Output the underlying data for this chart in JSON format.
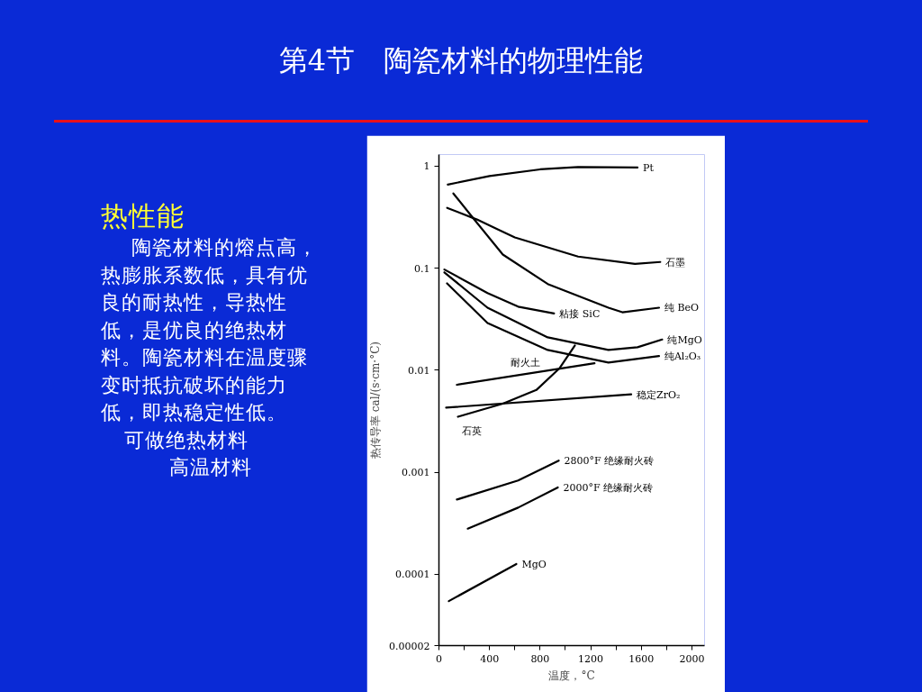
{
  "chart_data": {
    "type": "line",
    "title": "第4节　陶瓷材料的物理性能",
    "subtitle": "热性能",
    "annotations": [
      "陶瓷材料的熔点高，热膨胀系数低，具有优良的耐热性，导热性低，是优良的绝热材料。陶瓷材料在温度骤变时抵抗破坏的能力低，即热稳定性低。",
      "可做绝热材料",
      "高温材料"
    ],
    "xlabel": "温度，°C",
    "ylabel": "热传导率 cal/(s·cm·°C)",
    "log": "y",
    "grid": false,
    "marker": "none",
    "line_style": "solid",
    "xlim": [
      0,
      2100
    ],
    "ylim": [
      2e-05,
      1.3
    ],
    "xticks": [
      0,
      {
        "value": 200,
        "label": null
      },
      400,
      {
        "value": 600,
        "label": null
      },
      800,
      {
        "value": 1000,
        "label": null
      },
      1200,
      {
        "value": 1400,
        "label": null
      },
      1600,
      {
        "value": 1800,
        "label": null
      },
      2000
    ],
    "yticks": [
      {
        "value": 2e-05,
        "label": "0.00002"
      },
      0.0001,
      0.001,
      0.01,
      0.1,
      1
    ],
    "series": [
      {
        "name": "Pt",
        "color": "#000000",
        "x": [
          70,
          400,
          800,
          1100,
          1570
        ],
        "values": [
          0.66,
          0.8,
          0.93,
          0.98,
          0.97
        ]
      },
      {
        "name": "石墨",
        "color": "#000000",
        "x": [
          65,
          300,
          600,
          1100,
          1550,
          1750
        ],
        "values": [
          0.39,
          0.3,
          0.2,
          0.13,
          0.11,
          0.115
        ]
      },
      {
        "name": "纯 BeO",
        "color": "#000000",
        "x": [
          114,
          270,
          505,
          860,
          1340,
          1450,
          1740
        ],
        "values": [
          0.54,
          0.31,
          0.136,
          0.07,
          0.041,
          0.037,
          0.041
        ]
      },
      {
        "name": "粘接 SiC",
        "color": "#000000",
        "x": [
          43,
          384,
          626,
          910
        ],
        "values": [
          0.097,
          0.057,
          0.042,
          0.036
        ]
      },
      {
        "name": "纯MgO",
        "color": "#000000",
        "x": [
          43,
          384,
          860,
          1340,
          1570,
          1765
        ],
        "values": [
          0.091,
          0.041,
          0.021,
          0.0158,
          0.0168,
          0.02
        ]
      },
      {
        "name": "纯Al₂O₃",
        "color": "#000000",
        "x": [
          64,
          384,
          860,
          1340,
          1740
        ],
        "values": [
          0.071,
          0.029,
          0.0158,
          0.0119,
          0.0138
        ]
      },
      {
        "name": "耐火土",
        "color": "#000000",
        "x": [
          142,
          1230
        ],
        "values": [
          0.0072,
          0.0117
        ]
      },
      {
        "name": "石英",
        "color": "#000000",
        "x": [
          150,
          505,
          770,
          955,
          1075
        ],
        "values": [
          0.0035,
          0.0047,
          0.0064,
          0.0105,
          0.0175
        ]
      },
      {
        "name": "稳定ZrO₂",
        "color": "#000000",
        "x": [
          57,
          1520
        ],
        "values": [
          0.0043,
          0.0058
        ]
      },
      {
        "name": "2800°F 绝缘耐火砖",
        "color": "#000000",
        "x": [
          142,
          626,
          947
        ],
        "values": [
          0.00054,
          0.00083,
          0.0013
        ]
      },
      {
        "name": "2000°F 绝缘耐火砖",
        "color": "#000000",
        "x": [
          228,
          626,
          940
        ],
        "values": [
          0.00028,
          0.00045,
          0.00071
        ]
      },
      {
        "name": "MgO",
        "color": "#000000",
        "x": [
          78,
          612
        ],
        "values": [
          5.46e-05,
          0.000126
        ]
      }
    ]
  }
}
